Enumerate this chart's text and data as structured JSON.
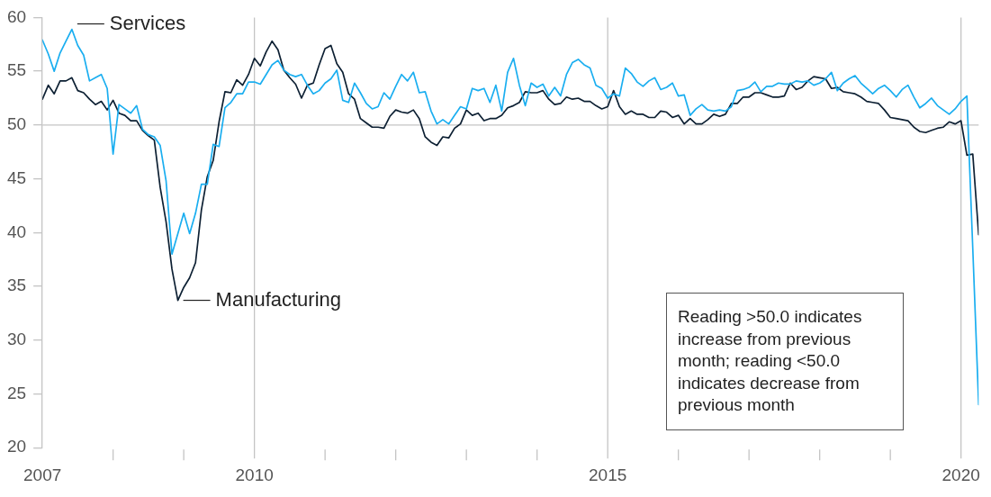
{
  "chart_data": {
    "type": "line",
    "x": [
      "2007-01",
      "2007-02",
      "2007-03",
      "2007-04",
      "2007-05",
      "2007-06",
      "2007-07",
      "2007-08",
      "2007-09",
      "2007-10",
      "2007-11",
      "2007-12",
      "2008-01",
      "2008-02",
      "2008-03",
      "2008-04",
      "2008-05",
      "2008-06",
      "2008-07",
      "2008-08",
      "2008-09",
      "2008-10",
      "2008-11",
      "2008-12",
      "2009-01",
      "2009-02",
      "2009-03",
      "2009-04",
      "2009-05",
      "2009-06",
      "2009-07",
      "2009-08",
      "2009-09",
      "2009-10",
      "2009-11",
      "2009-12",
      "2010-01",
      "2010-02",
      "2010-03",
      "2010-04",
      "2010-05",
      "2010-06",
      "2010-07",
      "2010-08",
      "2010-09",
      "2010-10",
      "2010-11",
      "2010-12",
      "2011-01",
      "2011-02",
      "2011-03",
      "2011-04",
      "2011-05",
      "2011-06",
      "2011-07",
      "2011-08",
      "2011-09",
      "2011-10",
      "2011-11",
      "2011-12",
      "2012-01",
      "2012-02",
      "2012-03",
      "2012-04",
      "2012-05",
      "2012-06",
      "2012-07",
      "2012-08",
      "2012-09",
      "2012-10",
      "2012-11",
      "2012-12",
      "2013-01",
      "2013-02",
      "2013-03",
      "2013-04",
      "2013-05",
      "2013-06",
      "2013-07",
      "2013-08",
      "2013-09",
      "2013-10",
      "2013-11",
      "2013-12",
      "2014-01",
      "2014-02",
      "2014-03",
      "2014-04",
      "2014-05",
      "2014-06",
      "2014-07",
      "2014-08",
      "2014-09",
      "2014-10",
      "2014-11",
      "2014-12",
      "2015-01",
      "2015-02",
      "2015-03",
      "2015-04",
      "2015-05",
      "2015-06",
      "2015-07",
      "2015-08",
      "2015-09",
      "2015-10",
      "2015-11",
      "2015-12",
      "2016-01",
      "2016-02",
      "2016-03",
      "2016-04",
      "2016-05",
      "2016-06",
      "2016-07",
      "2016-08",
      "2016-09",
      "2016-10",
      "2016-11",
      "2016-12",
      "2017-01",
      "2017-02",
      "2017-03",
      "2017-04",
      "2017-05",
      "2017-06",
      "2017-07",
      "2017-08",
      "2017-09",
      "2017-10",
      "2017-11",
      "2017-12",
      "2018-01",
      "2018-02",
      "2018-03",
      "2018-04",
      "2018-05",
      "2018-06",
      "2018-07",
      "2018-08",
      "2018-09",
      "2018-10",
      "2018-11",
      "2018-12",
      "2019-01",
      "2019-02",
      "2019-03",
      "2019-04",
      "2019-05",
      "2019-06",
      "2019-07",
      "2019-08",
      "2019-09",
      "2019-10",
      "2019-11",
      "2019-12",
      "2020-01",
      "2020-02",
      "2020-03",
      "2020-04"
    ],
    "series": [
      {
        "name": "Services",
        "color": "#1aaef0",
        "values": [
          57.9,
          56.6,
          55.0,
          56.7,
          57.8,
          58.9,
          57.4,
          56.5,
          54.1,
          54.4,
          54.7,
          53.4,
          47.3,
          51.9,
          51.5,
          51.1,
          51.8,
          49.6,
          49.1,
          48.9,
          48.1,
          44.8,
          38.0,
          39.9,
          41.8,
          39.9,
          41.8,
          44.5,
          44.5,
          48.2,
          48.0,
          51.6,
          52.1,
          52.9,
          52.9,
          54.0,
          54.0,
          53.8,
          54.7,
          55.6,
          56.0,
          55.1,
          54.7,
          54.5,
          54.7,
          53.7,
          52.9,
          53.2,
          53.9,
          54.3,
          55.1,
          52.3,
          52.1,
          53.9,
          53.0,
          52.0,
          51.5,
          51.7,
          53.0,
          52.4,
          53.6,
          54.7,
          54.1,
          54.9,
          53.0,
          53.1,
          51.3,
          50.1,
          50.5,
          50.1,
          50.9,
          51.7,
          51.5,
          53.4,
          53.2,
          53.4,
          52.1,
          53.7,
          51.3,
          54.9,
          56.2,
          53.7,
          51.8,
          53.9,
          53.5,
          53.8,
          52.7,
          53.5,
          52.7,
          54.7,
          55.8,
          56.1,
          55.6,
          55.3,
          53.7,
          53.4,
          52.5,
          52.9,
          52.7,
          55.3,
          54.8,
          54.0,
          53.6,
          54.1,
          54.4,
          53.3,
          53.5,
          53.9,
          52.7,
          52.8,
          50.9,
          51.5,
          51.9,
          51.4,
          51.3,
          51.4,
          51.3,
          51.7,
          53.2,
          53.3,
          53.5,
          54.0,
          53.1,
          53.6,
          53.6,
          53.9,
          53.8,
          53.8,
          54.1,
          54.0,
          54.1,
          53.7,
          53.9,
          54.3,
          54.9,
          53.2,
          53.9,
          54.3,
          54.6,
          53.9,
          53.4,
          52.9,
          53.4,
          53.7,
          53.2,
          52.6,
          53.3,
          53.7,
          52.6,
          51.6,
          52.0,
          52.5,
          51.8,
          51.4,
          51.0,
          51.5,
          52.2,
          52.7,
          38.5,
          24.0
        ]
      },
      {
        "name": "Manufacturing",
        "color": "#0d2033",
        "values": [
          52.4,
          53.7,
          52.9,
          54.1,
          54.1,
          54.4,
          53.2,
          53.0,
          52.4,
          51.9,
          52.2,
          51.4,
          52.3,
          51.1,
          50.9,
          50.4,
          50.4,
          49.5,
          49.0,
          48.6,
          44.2,
          41.0,
          36.6,
          33.7,
          34.9,
          35.8,
          37.2,
          42.1,
          45.2,
          46.7,
          50.3,
          53.1,
          53.0,
          54.2,
          53.7,
          54.7,
          56.2,
          55.5,
          56.8,
          57.8,
          57.0,
          55.1,
          54.4,
          53.8,
          52.5,
          53.7,
          53.9,
          55.6,
          57.1,
          57.4,
          55.7,
          54.9,
          52.9,
          52.4,
          50.6,
          50.2,
          49.8,
          49.8,
          49.7,
          50.8,
          51.4,
          51.2,
          51.1,
          51.4,
          50.6,
          48.9,
          48.4,
          48.1,
          48.9,
          48.8,
          49.7,
          50.1,
          51.4,
          50.9,
          51.1,
          50.4,
          50.6,
          50.6,
          50.9,
          51.6,
          51.8,
          52.1,
          53.1,
          53.0,
          53.0,
          53.2,
          52.4,
          51.9,
          52.0,
          52.6,
          52.4,
          52.5,
          52.2,
          52.2,
          51.8,
          51.5,
          51.7,
          53.2,
          51.7,
          51.0,
          51.3,
          51.0,
          51.0,
          50.7,
          50.7,
          51.3,
          51.2,
          50.7,
          50.9,
          50.1,
          50.6,
          50.1,
          50.1,
          50.5,
          51.0,
          50.8,
          51.0,
          52.0,
          52.0,
          52.6,
          52.6,
          53.0,
          53.0,
          52.8,
          52.6,
          52.6,
          52.7,
          53.9,
          53.3,
          53.5,
          54.1,
          54.5,
          54.4,
          54.3,
          53.4,
          53.5,
          53.1,
          53.0,
          52.9,
          52.6,
          52.2,
          52.1,
          52.0,
          51.4,
          50.7,
          50.6,
          50.5,
          50.4,
          49.8,
          49.4,
          49.3,
          49.5,
          49.7,
          49.8,
          50.3,
          50.1,
          50.4,
          47.2,
          47.3,
          39.8
        ]
      }
    ],
    "xlim": [
      "2007-01",
      "2020-04"
    ],
    "xticks": [
      {
        "value": "2007-01",
        "label": "2007"
      },
      {
        "value": "2008-01",
        "label": null
      },
      {
        "value": "2009-01",
        "label": null
      },
      {
        "value": "2010-01",
        "label": "2010"
      },
      {
        "value": "2011-01",
        "label": null
      },
      {
        "value": "2012-01",
        "label": null
      },
      {
        "value": "2013-01",
        "label": null
      },
      {
        "value": "2014-01",
        "label": null
      },
      {
        "value": "2015-01",
        "label": "2015"
      },
      {
        "value": "2016-01",
        "label": null
      },
      {
        "value": "2017-01",
        "label": null
      },
      {
        "value": "2018-01",
        "label": null
      },
      {
        "value": "2019-01",
        "label": null
      },
      {
        "value": "2020-01",
        "label": "2020"
      }
    ],
    "ylim": [
      20,
      60
    ],
    "yticks": [
      20,
      25,
      30,
      35,
      40,
      45,
      50,
      55,
      60
    ],
    "ref_lines": [
      {
        "axis": "y",
        "value": 50,
        "label": null
      },
      {
        "axis": "x",
        "value": "2010-01",
        "label": null
      },
      {
        "axis": "x",
        "value": "2015-01",
        "label": null
      },
      {
        "axis": "x",
        "value": "2020-01",
        "label": null
      }
    ],
    "annotations": [
      "Reading >50.0 indicates increase from previous month; reading <50.0 indicates decrease from previous month"
    ],
    "legend": false,
    "marker": "none",
    "line_style": "solid"
  }
}
